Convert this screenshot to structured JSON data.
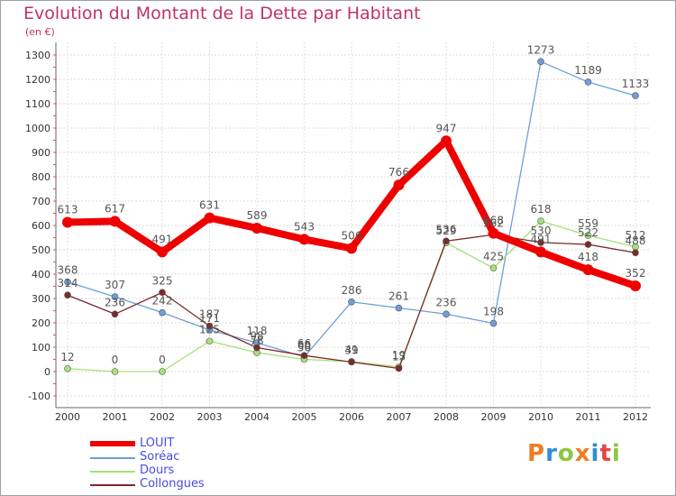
{
  "header": {
    "title": "Evolution du Montant de la Dette par Habitant",
    "subtitle": "(en €)"
  },
  "brand": {
    "logo_text": "Proxiti",
    "colors": [
      "#ef7d22",
      "#2f8fd0",
      "#8cc63f",
      "#ef7d22",
      "#2f8fd0",
      "#e64545",
      "#8cc63f"
    ]
  },
  "chart_data": {
    "type": "line",
    "title": "Evolution du Montant de la Dette par Habitant",
    "subtitle": "(en €)",
    "categories": [
      "2000",
      "2001",
      "2002",
      "2003",
      "2004",
      "2005",
      "2006",
      "2007",
      "2008",
      "2009",
      "2010",
      "2011",
      "2012"
    ],
    "yticks": [
      -100,
      0,
      100,
      200,
      300,
      400,
      500,
      600,
      700,
      800,
      900,
      1000,
      1100,
      1200,
      1300
    ],
    "ylim": [
      -100,
      1300
    ],
    "grid": true,
    "legend_position": "bottom-left",
    "series": [
      {
        "name": "LOUIT",
        "color": "#ee0000",
        "values": [
          613,
          617,
          491,
          631,
          589,
          543,
          506,
          766,
          947,
          568,
          491,
          418,
          352
        ]
      },
      {
        "name": "Soréac",
        "color": "#6f9fd8",
        "values": [
          368,
          307,
          242,
          171,
          118,
          60,
          286,
          261,
          236,
          198,
          1273,
          1189,
          1133
        ]
      },
      {
        "name": "Dours",
        "color": "#a8e07a",
        "values": [
          12,
          0,
          0,
          125,
          78,
          50,
          41,
          19,
          529,
          425,
          618,
          559,
          512
        ]
      },
      {
        "name": "Collongues",
        "color": "#7a2a2a",
        "values": [
          314,
          236,
          325,
          187,
          98,
          66,
          39,
          13,
          536,
          562,
          530,
          522,
          488
        ]
      }
    ]
  }
}
